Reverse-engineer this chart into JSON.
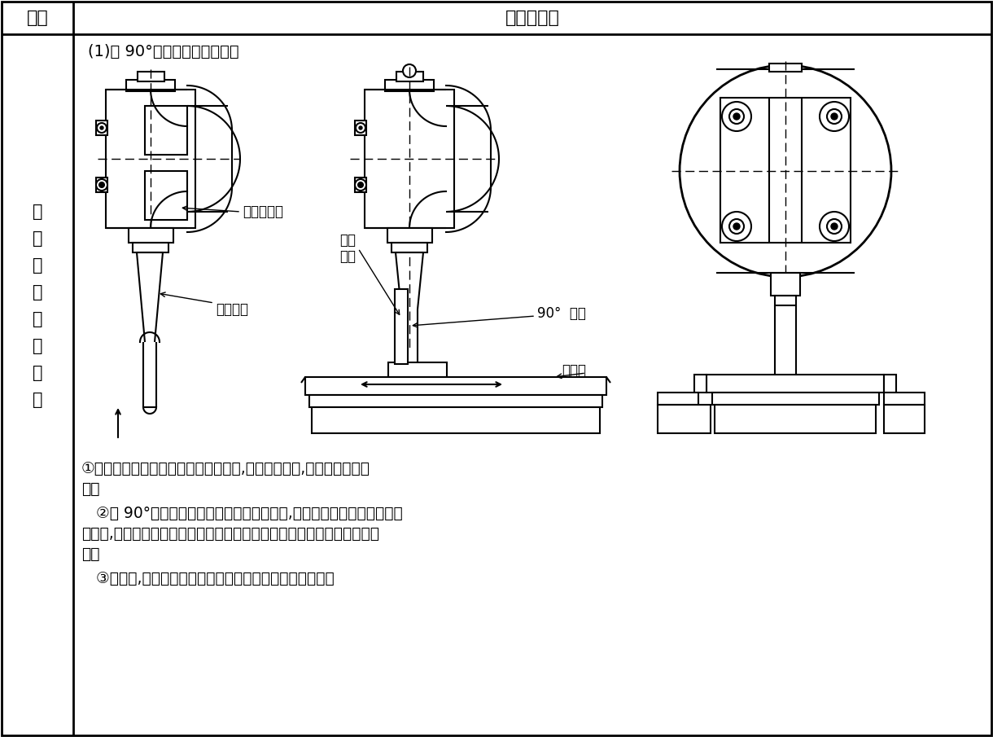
{
  "bg_color": "#ffffff",
  "header_col1": "类别",
  "header_col2": "图示与说明",
  "left_col_chars": [
    "立",
    "铣",
    "头",
    "零",
    "位",
    "的",
    "校",
    "正"
  ],
  "subtitle": "(1)用 90°角尺和锥度心轴校正",
  "label_spindle": "立铣头主轴",
  "label_taper1": "锥柄心轴",
  "label_taper2_1": "锥柄",
  "label_taper2_2": "心轴",
  "label_square": "90°  角尺",
  "label_table": "工作台",
  "text1": "①选用与主轴锥孔锥度相同的锥柄心轴,擦净接合面后,将心轴插人主轴",
  "text1b": "锥孔",
  "text2": "   ②将 90°角尺尺座底面紧贴在工作台台面上,用尺苗外测量面靠向心轴圆",
  "text2b": "柱表面,观察缝隙是否均匀或密合来确定立铣头主轴轴线与工作台台面是否",
  "text2c": "垂直",
  "text3": "   ③校正时,应在工作台进给方向的平行和垂直两个位置进行"
}
